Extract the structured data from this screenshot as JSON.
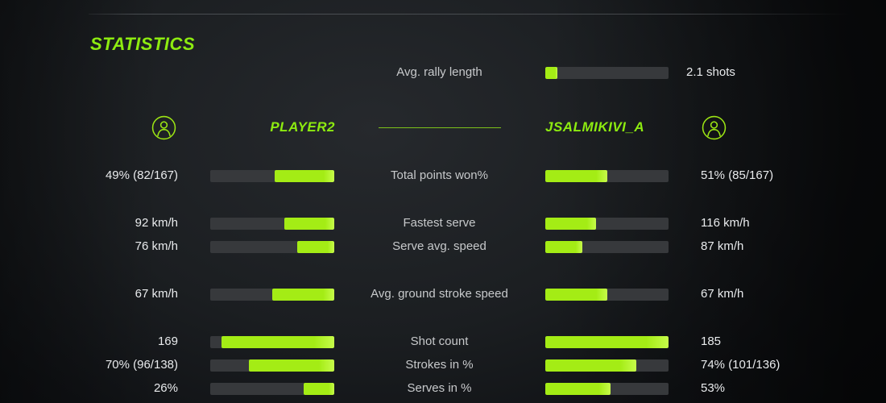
{
  "title": "STATISTICS",
  "colors": {
    "accent_green": "#8deb10",
    "bar_green": "#a4ec15",
    "bar_track": "#37393c",
    "label_text": "#c7c9cb",
    "value_text": "#e9ebed",
    "background": "#15181b"
  },
  "rally": {
    "label": "Avg. rally length",
    "value": "2.1 shots",
    "fill_pct": 10
  },
  "players": {
    "left": {
      "name": "PLAYER2",
      "icon": "user-icon"
    },
    "right": {
      "name": "JSALMIKIVI_A",
      "icon": "user-icon"
    }
  },
  "stats": {
    "rows": [
      {
        "label": "Total points won%",
        "left_value": "49% (82/167)",
        "right_value": "51% (85/167)",
        "left_fill_pct": 48,
        "right_fill_pct": 50
      },
      {
        "label": "Fastest serve",
        "left_value": "92 km/h",
        "right_value": "116 km/h",
        "left_fill_pct": 40,
        "right_fill_pct": 41
      },
      {
        "label": "Serve avg. speed",
        "left_value": "76 km/h",
        "right_value": "87 km/h",
        "left_fill_pct": 30,
        "right_fill_pct": 30
      },
      {
        "label": "Avg. ground stroke speed",
        "left_value": "67 km/h",
        "right_value": "67 km/h",
        "left_fill_pct": 50,
        "right_fill_pct": 50
      },
      {
        "label": "Shot count",
        "left_value": "169",
        "right_value": "185",
        "left_fill_pct": 91,
        "right_fill_pct": 100
      },
      {
        "label": "Strokes in %",
        "left_value": "70% (96/138)",
        "right_value": "74% (101/136)",
        "left_fill_pct": 69,
        "right_fill_pct": 74
      },
      {
        "label": "Serves in %",
        "left_value": "26%",
        "right_value": "53%",
        "left_fill_pct": 25,
        "right_fill_pct": 53
      }
    ]
  }
}
